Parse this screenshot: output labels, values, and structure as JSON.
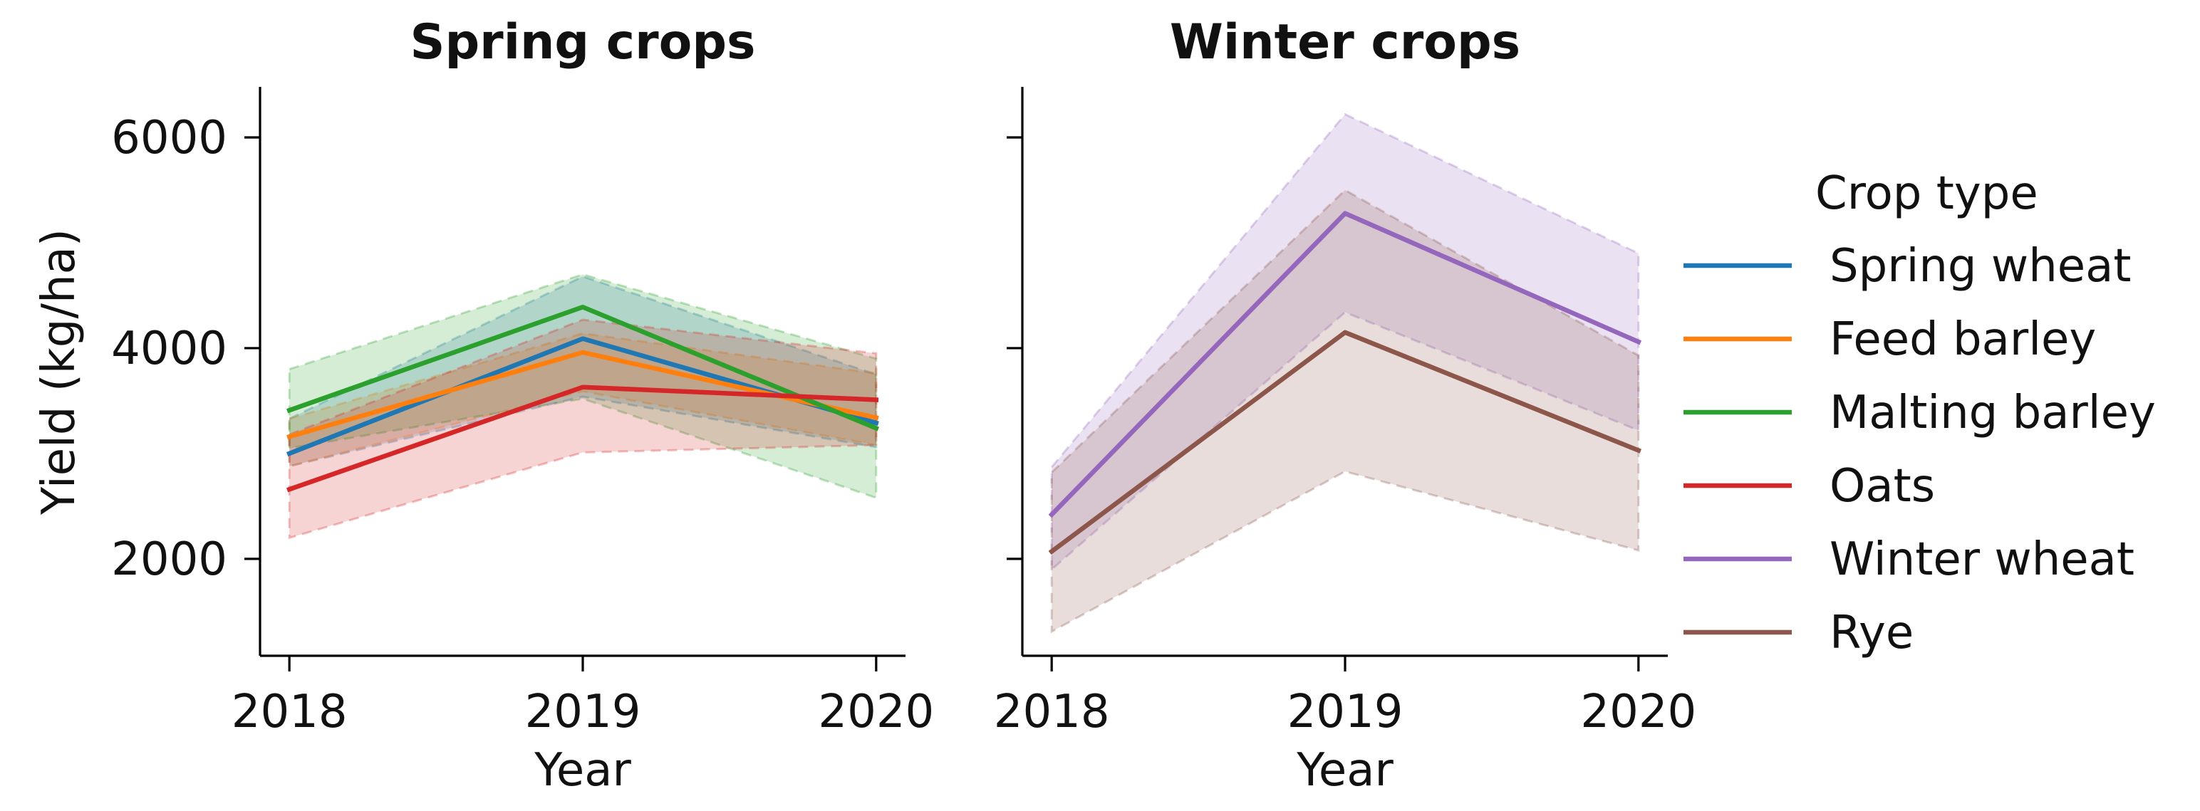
{
  "chart_data": [
    {
      "type": "line",
      "title": "Spring crops",
      "xlabel": "Year",
      "ylabel": "Yield (kg/ha)",
      "x": [
        2018,
        2019,
        2020
      ],
      "xlim": [
        2017.9,
        2020.1
      ],
      "ylim": [
        1080,
        6480
      ],
      "yticks": [
        2000,
        4000,
        6000
      ],
      "series": [
        {
          "name": "Spring wheat",
          "color": "#1f77b4",
          "values": [
            3000,
            4090,
            3290
          ],
          "lower": [
            2880,
            3540,
            3060
          ],
          "upper": [
            3330,
            4680,
            3750
          ]
        },
        {
          "name": "Feed barley",
          "color": "#ff7f0e",
          "values": [
            3160,
            3960,
            3340
          ],
          "lower": [
            2880,
            3590,
            3080
          ],
          "upper": [
            3330,
            4140,
            3760
          ]
        },
        {
          "name": "Malting barley",
          "color": "#2ca02c",
          "values": [
            3410,
            4390,
            3240
          ],
          "lower": [
            3050,
            3520,
            2580
          ],
          "upper": [
            3800,
            4700,
            3900
          ]
        },
        {
          "name": "Oats",
          "color": "#d62728",
          "values": [
            2660,
            3630,
            3510
          ],
          "lower": [
            2200,
            3010,
            3080
          ],
          "upper": [
            3180,
            4270,
            3950
          ]
        }
      ]
    },
    {
      "type": "line",
      "title": "Winter crops",
      "xlabel": "Year",
      "ylabel": "",
      "x": [
        2018,
        2019,
        2020
      ],
      "xlim": [
        2017.9,
        2020.1
      ],
      "ylim": [
        1080,
        6480
      ],
      "yticks": [
        2000,
        4000,
        6000
      ],
      "series": [
        {
          "name": "Winter wheat",
          "color": "#9467bd",
          "values": [
            2420,
            5280,
            4060
          ],
          "lower": [
            1900,
            4340,
            3220
          ],
          "upper": [
            2870,
            6220,
            4900
          ]
        },
        {
          "name": "Rye",
          "color": "#8c564b",
          "values": [
            2070,
            4150,
            3030
          ],
          "lower": [
            1310,
            2830,
            2080
          ],
          "upper": [
            2820,
            5500,
            3930
          ]
        }
      ]
    }
  ],
  "legend": {
    "title": "Crop type",
    "entries": [
      {
        "label": "Spring wheat",
        "color": "#1f77b4"
      },
      {
        "label": "Feed barley",
        "color": "#ff7f0e"
      },
      {
        "label": "Malting barley",
        "color": "#2ca02c"
      },
      {
        "label": "Oats",
        "color": "#d62728"
      },
      {
        "label": "Winter wheat",
        "color": "#9467bd"
      },
      {
        "label": "Rye",
        "color": "#8c564b"
      }
    ]
  }
}
